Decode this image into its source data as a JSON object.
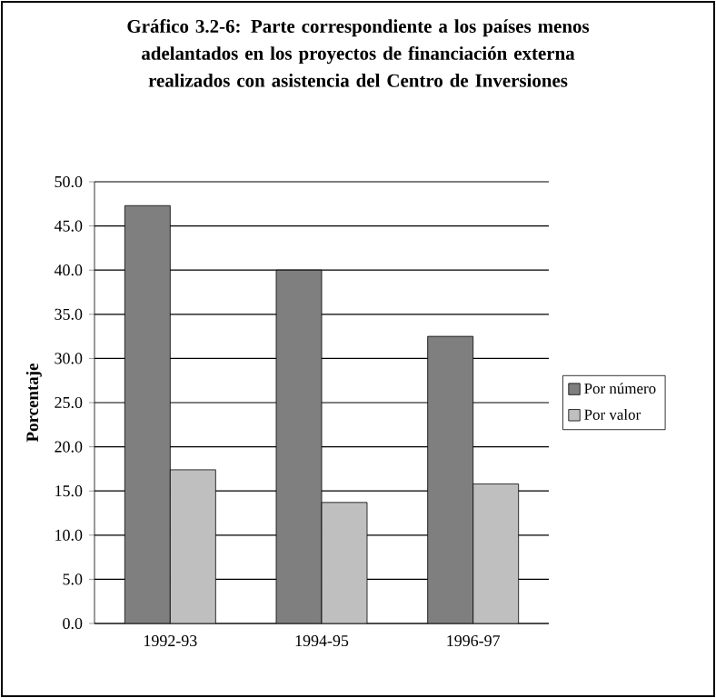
{
  "chart_data": {
    "type": "bar",
    "title": "Gráfico 3.2-6: Parte correspondiente a los países menos adelantados en los proyectos de financiación externa realizados con asistencia del Centro de Inversiones",
    "ylabel": "Porcentaje",
    "categories": [
      "1992-93",
      "1994-95",
      "1996-97"
    ],
    "series": [
      {
        "name": "Por número",
        "color": "#7f7f7f",
        "values": [
          47.3,
          40.0,
          32.5
        ]
      },
      {
        "name": "Por valor",
        "color": "#bfbfbf",
        "values": [
          17.4,
          13.7,
          15.8
        ]
      }
    ],
    "ylim": [
      0,
      50
    ],
    "yticks": [
      {
        "value": 0,
        "label": "0.0"
      },
      {
        "value": 5,
        "label": "5.0"
      },
      {
        "value": 10,
        "label": "10.0"
      },
      {
        "value": 15,
        "label": "15.0"
      },
      {
        "value": 20,
        "label": "20.0"
      },
      {
        "value": 25,
        "label": "25.0"
      },
      {
        "value": 30,
        "label": "30.0"
      },
      {
        "value": 35,
        "label": "35.0"
      },
      {
        "value": 40,
        "label": "40.0"
      },
      {
        "value": 45,
        "label": "45.0"
      },
      {
        "value": 50,
        "label": "50.0"
      }
    ],
    "grid": "y",
    "legend": "right"
  }
}
